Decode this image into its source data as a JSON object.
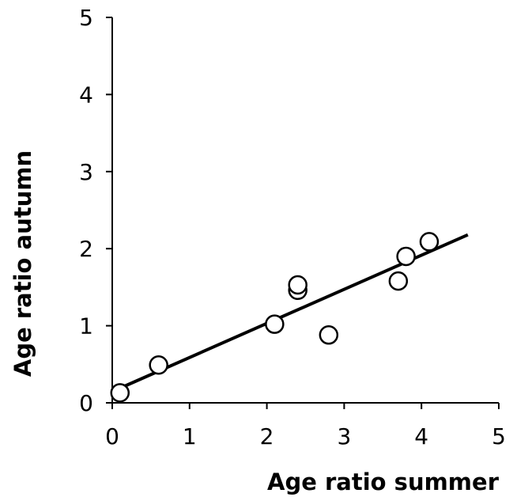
{
  "chart_data": {
    "type": "scatter",
    "title": "",
    "xlabel": "Age ratio summer",
    "ylabel": "Age ratio autumn",
    "xlim": [
      0,
      5
    ],
    "ylim": [
      0,
      5
    ],
    "xticks": [
      "0",
      "1",
      "2",
      "3",
      "4",
      "5"
    ],
    "yticks": [
      "0",
      "1",
      "2",
      "3",
      "4",
      "5"
    ],
    "grid": false,
    "legend": "none",
    "marker": "open-circle",
    "marker_color": "#000000",
    "line_color": "#000000",
    "points": [
      {
        "x": 0.1,
        "y": 0.13
      },
      {
        "x": 0.6,
        "y": 0.49
      },
      {
        "x": 2.1,
        "y": 1.02
      },
      {
        "x": 2.4,
        "y": 1.46
      },
      {
        "x": 2.4,
        "y": 1.53
      },
      {
        "x": 2.8,
        "y": 0.88
      },
      {
        "x": 3.7,
        "y": 1.58
      },
      {
        "x": 3.8,
        "y": 1.9
      },
      {
        "x": 4.1,
        "y": 2.09
      }
    ],
    "trendline": {
      "x": [
        0.1,
        4.6
      ],
      "y": [
        0.19,
        2.18
      ]
    }
  }
}
